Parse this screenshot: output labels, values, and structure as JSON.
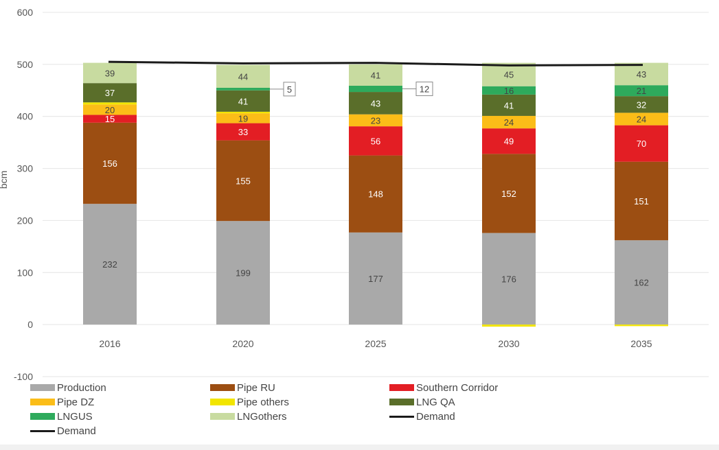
{
  "chart_data": {
    "type": "bar",
    "stacked": true,
    "categories": [
      "2016",
      "2020",
      "2025",
      "2030",
      "2035"
    ],
    "ylabel": "bcm",
    "ylim": [
      -100,
      600
    ],
    "yticks": [
      "600",
      "500",
      "400",
      "300",
      "200",
      "100",
      "0",
      "-100"
    ],
    "grid": true,
    "legend_position": "bottom",
    "series": [
      {
        "name": "Production",
        "color": "#a9a9a9",
        "label_color": "#444444",
        "values": [
          232,
          199,
          177,
          176,
          162
        ],
        "labels": [
          "232",
          "199",
          "177",
          "176",
          "162"
        ]
      },
      {
        "name": "Pipe RU",
        "color": "#9c4e12",
        "label_color": "#ffffff",
        "values": [
          156,
          155,
          148,
          152,
          151
        ],
        "labels": [
          "156",
          "155",
          "148",
          "152",
          "151"
        ]
      },
      {
        "name": "Southern Corridor",
        "color": "#e31e24",
        "label_color": "#ffffff",
        "values": [
          15,
          33,
          56,
          49,
          70
        ],
        "labels": [
          "15",
          "33",
          "56",
          "49",
          "70"
        ]
      },
      {
        "name": "Pipe DZ",
        "color": "#fbbd18",
        "label_color": "#444444",
        "values": [
          20,
          19,
          23,
          24,
          24
        ],
        "labels": [
          "20",
          "19",
          "23",
          "24",
          "24"
        ]
      },
      {
        "name": "Pipe others",
        "color": "#f2e500",
        "label_color": "#444444",
        "values": [
          4,
          3,
          0,
          -4,
          -3
        ],
        "labels": [
          "",
          "",
          "",
          "",
          ""
        ]
      },
      {
        "name": "LNG QA",
        "color": "#5a6e2a",
        "label_color": "#ffffff",
        "values": [
          37,
          41,
          43,
          41,
          32
        ],
        "labels": [
          "37",
          "41",
          "43",
          "41",
          "32"
        ]
      },
      {
        "name": "LNGUS",
        "color": "#2eaa5c",
        "label_color": "#444444",
        "values": [
          0,
          5,
          12,
          16,
          21
        ],
        "labels": [
          "",
          "",
          "",
          "16",
          "21"
        ]
      },
      {
        "name": "LNGothers",
        "color": "#c8dba0",
        "label_color": "#444444",
        "values": [
          39,
          44,
          41,
          45,
          43
        ],
        "labels": [
          "39",
          "44",
          "41",
          "45",
          "43"
        ]
      }
    ],
    "callouts": [
      {
        "category": "2020",
        "series": "LNGUS",
        "text": "5"
      },
      {
        "category": "2025",
        "series": "LNGUS",
        "text": "12"
      }
    ],
    "demand": {
      "name": "Demand",
      "color": "#1a1a1a",
      "values": [
        505,
        502,
        503,
        498,
        499
      ]
    }
  },
  "legend": {
    "items": [
      {
        "label": "Production",
        "color": "#a9a9a9",
        "kind": "box"
      },
      {
        "label": "Pipe RU",
        "color": "#9c4e12",
        "kind": "box"
      },
      {
        "label": "Southern Corridor",
        "color": "#e31e24",
        "kind": "box"
      },
      {
        "label": "Pipe DZ",
        "color": "#fbbd18",
        "kind": "box"
      },
      {
        "label": "Pipe others",
        "color": "#f2e500",
        "kind": "box"
      },
      {
        "label": "LNG QA",
        "color": "#5a6e2a",
        "kind": "box"
      },
      {
        "label": "LNGUS",
        "color": "#2eaa5c",
        "kind": "box"
      },
      {
        "label": "LNGothers",
        "color": "#c8dba0",
        "kind": "box"
      },
      {
        "label": "Demand",
        "color": "#1a1a1a",
        "kind": "line"
      },
      {
        "label": "Demand",
        "color": "#1a1a1a",
        "kind": "line"
      }
    ]
  }
}
